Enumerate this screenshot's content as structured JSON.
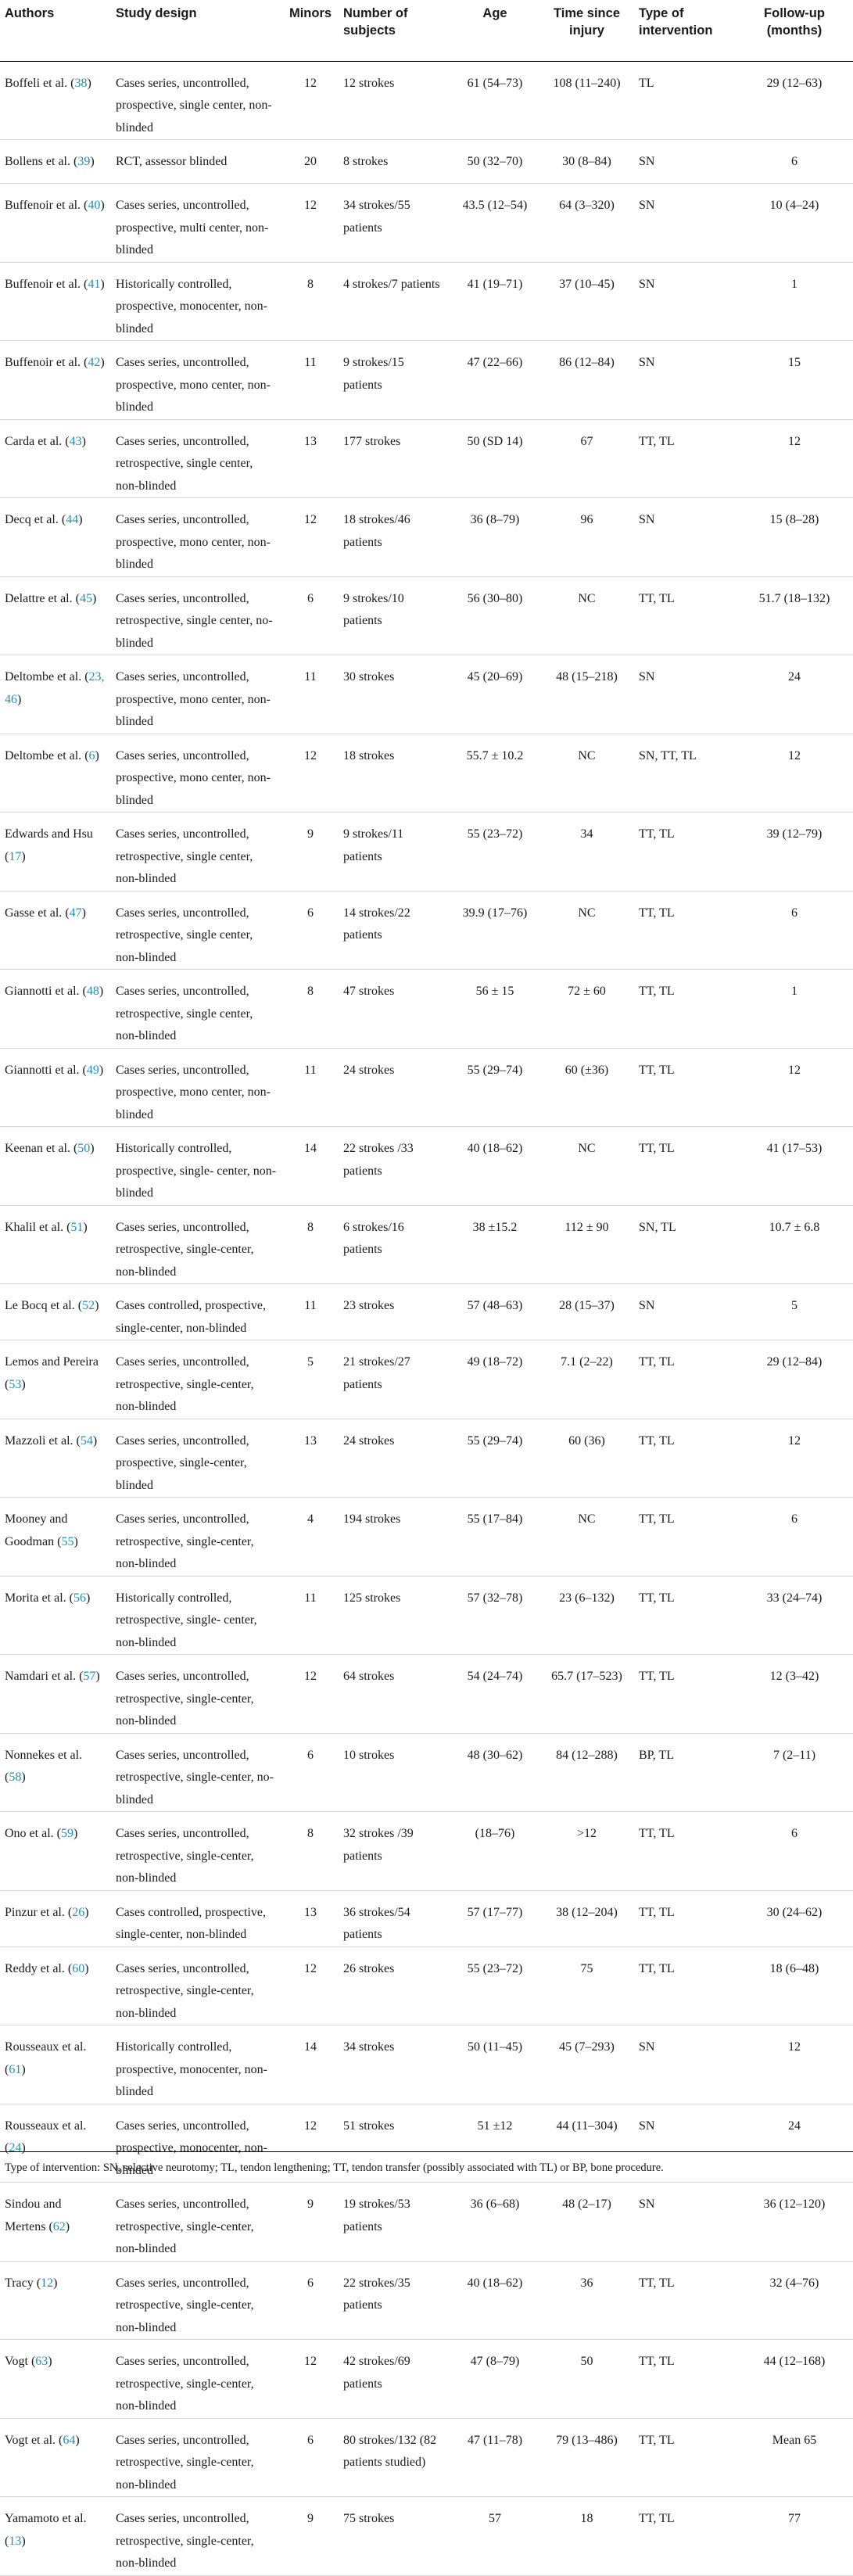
{
  "headers": {
    "authors": "Authors",
    "design": "Study design",
    "minors": "Minors",
    "subjects": "Number of subjects",
    "age": "Age",
    "time": "Time since injury",
    "type": "Type of intervention",
    "follow": "Follow-up (months)"
  },
  "rows": [
    {
      "author": "Boffeli et al.",
      "ref": "38",
      "design": "Cases series, uncontrolled, prospective, single center, non-blinded",
      "minors": "12",
      "subjects": "12 strokes",
      "age": "61 (54–73)",
      "time": "108 (11–240)",
      "type": "TL",
      "follow": "29 (12–63)"
    },
    {
      "author": "Bollens et al.",
      "ref": "39",
      "design": "RCT, assessor blinded",
      "minors": "20",
      "subjects": "8 strokes",
      "age": "50 (32–70)",
      "time": "30 (8–84)",
      "type": "SN",
      "follow": "6"
    },
    {
      "author": "Buffenoir et al.",
      "ref": "40",
      "design": "Cases series, uncontrolled, prospective, multi center, non-blinded",
      "minors": "12",
      "subjects": "34 strokes/55 patients",
      "age": "43.5 (12–54)",
      "time": "64 (3–320)",
      "type": "SN",
      "follow": "10 (4–24)"
    },
    {
      "author": "Buffenoir et al.",
      "ref": "41",
      "design": "Historically controlled, prospective, monocenter, non-blinded",
      "minors": "8",
      "subjects": "4 strokes/7 patients",
      "age": "41 (19–71)",
      "time": "37 (10–45)",
      "type": "SN",
      "follow": "1"
    },
    {
      "author": "Buffenoir et al.",
      "ref": "42",
      "design": "Cases series, uncontrolled, prospective, mono center, non-blinded",
      "minors": "11",
      "subjects": "9 strokes/15 patients",
      "age": "47 (22–66)",
      "time": "86 (12–84)",
      "type": "SN",
      "follow": "15"
    },
    {
      "author": "Carda et al.",
      "ref": "43",
      "design": "Cases series, uncontrolled, retrospective, single center, non-blinded",
      "minors": "13",
      "subjects": "177 strokes",
      "age": "50 (SD 14)",
      "time": "67",
      "type": "TT, TL",
      "follow": "12"
    },
    {
      "author": "Decq et al.",
      "ref": "44",
      "design": "Cases series, uncontrolled, prospective, mono center, non-blinded",
      "minors": "12",
      "subjects": "18 strokes/46 patients",
      "age": "36 (8–79)",
      "time": "96",
      "type": "SN",
      "follow": "15 (8–28)"
    },
    {
      "author": "Delattre et al.",
      "ref": "45",
      "design": "Cases series, uncontrolled, retrospective, single center, no-blinded",
      "minors": "6",
      "subjects": "9 strokes/10 patients",
      "age": "56 (30–80)",
      "time": "NC",
      "type": "TT, TL",
      "follow": "51.7 (18–132)"
    },
    {
      "author": "Deltombe et al.",
      "ref": "23, 46",
      "design": "Cases series, uncontrolled, prospective, mono center, non-blinded",
      "minors": "11",
      "subjects": "30 strokes",
      "age": "45 (20–69)",
      "time": "48 (15–218)",
      "type": "SN",
      "follow": "24"
    },
    {
      "author": "Deltombe et al.",
      "ref": "6",
      "design": "Cases series, uncontrolled, prospective, mono center, non-blinded",
      "minors": "12",
      "subjects": "18 strokes",
      "age": "55.7 ± 10.2",
      "time": "NC",
      "type": "SN, TT, TL",
      "follow": "12"
    },
    {
      "author": "Edwards and Hsu",
      "ref": "17",
      "design": "Cases series, uncontrolled, retrospective, single center, non-blinded",
      "minors": "9",
      "subjects": "9 strokes/11 patients",
      "age": "55 (23–72)",
      "time": "34",
      "type": "TT, TL",
      "follow": "39 (12–79)"
    },
    {
      "author": "Gasse et al.",
      "ref": "47",
      "design": "Cases series, uncontrolled, retrospective, single center, non-blinded",
      "minors": "6",
      "subjects": "14 strokes/22 patients",
      "age": "39.9 (17–76)",
      "time": "NC",
      "type": "TT, TL",
      "follow": "6"
    },
    {
      "author": "Giannotti et al.",
      "ref": "48",
      "design": "Cases series, uncontrolled, retrospective, single center, non-blinded",
      "minors": "8",
      "subjects": "47 strokes",
      "age": "56 ± 15",
      "time": "72 ± 60",
      "type": "TT, TL",
      "follow": "1"
    },
    {
      "author": "Giannotti et al.",
      "ref": "49",
      "design": "Cases series, uncontrolled, prospective, mono center, non-blinded",
      "minors": "11",
      "subjects": "24 strokes",
      "age": "55 (29–74)",
      "time": "60 (±36)",
      "type": "TT, TL",
      "follow": "12"
    },
    {
      "author": "Keenan et al.",
      "ref": "50",
      "design": "Historically controlled, prospective, single- center, non-blinded",
      "minors": "14",
      "subjects": "22 strokes /33 patients",
      "age": "40 (18–62)",
      "time": "NC",
      "type": "TT, TL",
      "follow": "41 (17–53)"
    },
    {
      "author": "Khalil et al.",
      "ref": "51",
      "design": "Cases series, uncontrolled, retrospective, single-center, non-blinded",
      "minors": "8",
      "subjects": "6 strokes/16 patients",
      "age": "38 ±15.2",
      "time": "112 ± 90",
      "type": "SN, TL",
      "follow": "10.7 ± 6.8"
    },
    {
      "author": "Le Bocq et al.",
      "ref": "52",
      "design": "Cases controlled, prospective, single-center, non-blinded",
      "minors": "11",
      "subjects": "23 strokes",
      "age": "57 (48–63)",
      "time": "28 (15–37)",
      "type": "SN",
      "follow": "5"
    },
    {
      "author": "Lemos and Pereira",
      "ref": "53",
      "design": "Cases series, uncontrolled, retrospective, single-center, non-blinded",
      "minors": "5",
      "subjects": "21 strokes/27 patients",
      "age": "49 (18–72)",
      "time": "7.1 (2–22)",
      "type": "TT, TL",
      "follow": "29 (12–84)"
    },
    {
      "author": "Mazzoli et al.",
      "ref": "54",
      "design": "Cases series, uncontrolled, prospective, single-center, blinded",
      "minors": "13",
      "subjects": "24 strokes",
      "age": "55 (29–74)",
      "time": "60 (36)",
      "type": "TT, TL",
      "follow": "12"
    },
    {
      "author": "Mooney and Goodman",
      "ref": "55",
      "design": "Cases series, uncontrolled, retrospective, single-center, non-blinded",
      "minors": "4",
      "subjects": "194 strokes",
      "age": "55 (17–84)",
      "time": "NC",
      "type": "TT, TL",
      "follow": "6"
    },
    {
      "author": "Morita et al.",
      "ref": "56",
      "design": "Historically controlled, retrospective, single- center, non-blinded",
      "minors": "11",
      "subjects": "125 strokes",
      "age": "57 (32–78)",
      "time": "23 (6–132)",
      "type": "TT, TL",
      "follow": "33 (24–74)"
    },
    {
      "author": "Namdari et al.",
      "ref": "57",
      "design": "Cases series, uncontrolled, retrospective, single-center, non-blinded",
      "minors": "12",
      "subjects": "64 strokes",
      "age": "54 (24–74)",
      "time": "65.7 (17–523)",
      "type": "TT, TL",
      "follow": "12 (3–42)"
    },
    {
      "author": "Nonnekes et al.",
      "ref": "58",
      "design": "Cases series, uncontrolled, retrospective, single-center, no-blinded",
      "minors": "6",
      "subjects": "10 strokes",
      "age": "48 (30–62)",
      "time": "84 (12–288)",
      "type": "BP, TL",
      "follow": "7 (2–11)"
    },
    {
      "author": "Ono et al.",
      "ref": "59",
      "design": "Cases series, uncontrolled, retrospective, single-center, non-blinded",
      "minors": "8",
      "subjects": "32 strokes /39 patients",
      "age": "(18–76)",
      "time": ">12",
      "type": "TT, TL",
      "follow": "6"
    },
    {
      "author": "Pinzur et al.",
      "ref": "26",
      "design": "Cases controlled, prospective, single-center, non-blinded",
      "minors": "13",
      "subjects": "36 strokes/54 patients",
      "age": "57 (17–77)",
      "time": "38 (12–204)",
      "type": "TT, TL",
      "follow": "30 (24–62)"
    },
    {
      "author": "Reddy et al.",
      "ref": "60",
      "design": "Cases series, uncontrolled, retrospective, single-center, non-blinded",
      "minors": "12",
      "subjects": "26 strokes",
      "age": "55 (23–72)",
      "time": "75",
      "type": "TT, TL",
      "follow": "18 (6–48)"
    },
    {
      "author": "Rousseaux et al.",
      "ref": "61",
      "design": "Historically controlled, prospective, monocenter, non-blinded",
      "minors": "14",
      "subjects": "34 strokes",
      "age": "50 (11–45)",
      "time": "45 (7–293)",
      "type": "SN",
      "follow": "12"
    },
    {
      "author": "Rousseaux et al.",
      "ref": "24",
      "design": "Cases series, uncontrolled, prospective, monocenter, non-blinded",
      "minors": "12",
      "subjects": "51 strokes",
      "age": "51 ±12",
      "time": "44 (11–304)",
      "type": "SN",
      "follow": "24"
    },
    {
      "author": "Sindou and Mertens",
      "ref": "62",
      "design": "Cases series, uncontrolled, retrospective, single-center, non-blinded",
      "minors": "9",
      "subjects": "19 strokes/53 patients",
      "age": "36 (6–68)",
      "time": "48 (2–17)",
      "type": "SN",
      "follow": "36 (12–120)"
    },
    {
      "author": "Tracy",
      "ref": "12",
      "design": "Cases series, uncontrolled, retrospective, single-center, non-blinded",
      "minors": "6",
      "subjects": "22 strokes/35 patients",
      "age": "40 (18–62)",
      "time": "36",
      "type": "TT, TL",
      "follow": "32 (4–76)"
    },
    {
      "author": "Vogt",
      "ref": "63",
      "design": "Cases series, uncontrolled, retrospective, single-center, non-blinded",
      "minors": "12",
      "subjects": "42 strokes/69 patients",
      "age": "47 (8–79)",
      "time": "50",
      "type": "TT, TL",
      "follow": "44 (12–168)"
    },
    {
      "author": "Vogt et al.",
      "ref": "64",
      "design": "Cases series, uncontrolled, retrospective, single-center, non-blinded",
      "minors": "6",
      "subjects": "80 strokes/132 (82 patients studied)",
      "age": "47 (11–78)",
      "time": "79 (13–486)",
      "type": "TT, TL",
      "follow": "Mean 65"
    },
    {
      "author": "Yamamoto et al.",
      "ref": "13",
      "design": "Cases series, uncontrolled, retrospective, single-center, non-blinded",
      "minors": "9",
      "subjects": "75 strokes",
      "age": "57",
      "time": "18",
      "type": "TT, TL",
      "follow": "77"
    }
  ],
  "footnote": "Type of intervention: SN, selective neurotomy; TL, tendon lengthening; TT, tendon transfer (possibly associated with TL) or BP, bone procedure."
}
